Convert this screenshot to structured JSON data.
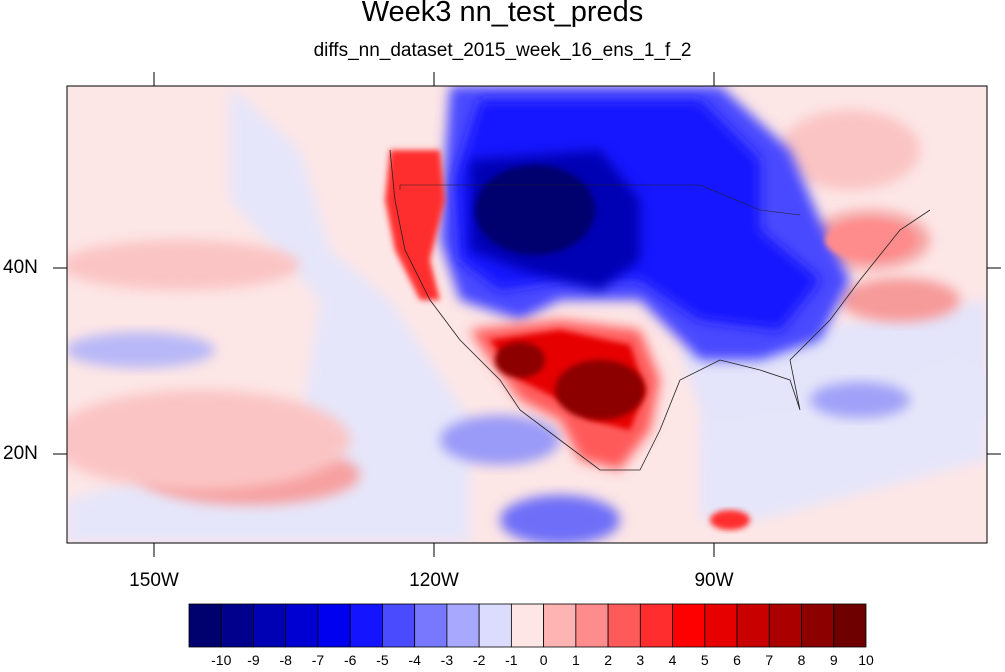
{
  "title": "Week3 nn_test_preds",
  "subtitle": "diffs_nn_dataset_2015_week_16_ens_1_f_2",
  "axes": {
    "lon_labels": [
      "150W",
      "120W",
      "90W"
    ],
    "lat_labels": [
      "40N",
      "20N"
    ]
  },
  "colorbar": {
    "labels": [
      "-10",
      "-9",
      "-8",
      "-7",
      "-6",
      "-5",
      "-4",
      "-3",
      "-2",
      "-1",
      "0",
      "1",
      "2",
      "3",
      "4",
      "5",
      "6",
      "7",
      "8",
      "9",
      "10"
    ],
    "colors": [
      "#00006e",
      "#00008c",
      "#0000b4",
      "#0000d2",
      "#0000f0",
      "#1414ff",
      "#4a4aff",
      "#7878ff",
      "#a8a8ff",
      "#dcdcff",
      "#ffe6e6",
      "#ffb4b4",
      "#ff8c8c",
      "#ff5a5a",
      "#ff2d2d",
      "#ff0000",
      "#e60000",
      "#c80000",
      "#aa0000",
      "#8c0000",
      "#6e0000"
    ]
  },
  "map_colors": {
    "background": "#fde6e6",
    "water_light": "#e4e4fa"
  }
}
